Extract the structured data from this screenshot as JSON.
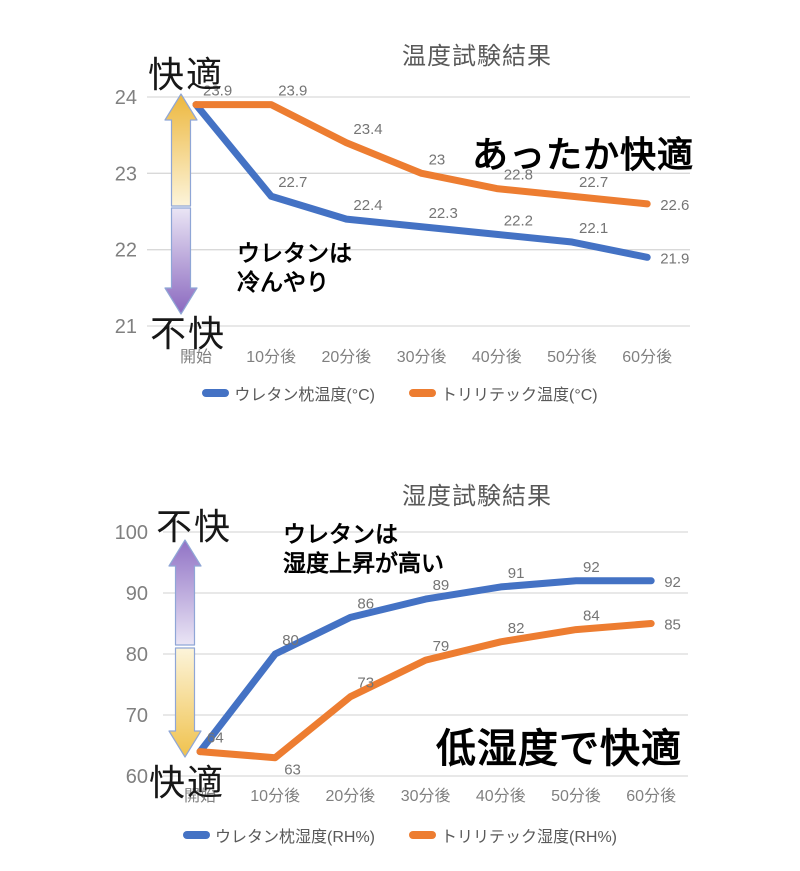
{
  "page": {
    "background": "#ffffff"
  },
  "chart_data": [
    {
      "id": "temperature-test",
      "type": "line",
      "title": "温度試験結果",
      "categories": [
        "開始",
        "10分後",
        "20分後",
        "30分後",
        "40分後",
        "50分後",
        "60分後"
      ],
      "series": [
        {
          "name": "ウレタン枕温度(°C)",
          "color": "#4472C4",
          "values": [
            23.9,
            22.7,
            22.4,
            22.3,
            22.2,
            22.1,
            21.9
          ],
          "point_labels": [
            "",
            "22.7",
            "22.4",
            "22.3",
            "22.2",
            "22.1",
            "21.9"
          ]
        },
        {
          "name": "トリリテック温度(°C)",
          "color": "#ED7D31",
          "values": [
            23.9,
            23.9,
            23.4,
            23,
            22.8,
            22.7,
            22.6
          ],
          "point_labels": [
            "23.9",
            "23.9",
            "23.4",
            "23",
            "22.8",
            "22.7",
            "22.6"
          ]
        }
      ],
      "ylim": [
        21,
        24
      ],
      "yticks": [
        24,
        23,
        22,
        21
      ],
      "grid": true,
      "legend_position": "bottom",
      "annotations": {
        "comfort_top": "快適",
        "comfort_bottom": "不快",
        "headline": "あったか快適",
        "note": "ウレタンは\n冷んやり"
      },
      "comfort_arrows": [
        {
          "position": "top",
          "direction": "up",
          "tip_color": "#EDB73D",
          "base_color": "#FCF4DA",
          "outline_color": "#8FA6D6"
        },
        {
          "position": "bottom",
          "direction": "down",
          "tip_color": "#8A68BF",
          "base_color": "#EAE5F5",
          "outline_color": "#8FA6D6"
        }
      ],
      "colors": {
        "grid": "#D9D9D9",
        "tick_text": "#808080",
        "title_text": "#595959",
        "data_label_text": "#757575"
      }
    },
    {
      "id": "humidity-test",
      "type": "line",
      "title": "湿度試験結果",
      "categories": [
        "開始",
        "10分後",
        "20分後",
        "30分後",
        "40分後",
        "50分後",
        "60分後"
      ],
      "series": [
        {
          "name": "ウレタン枕湿度(RH%)",
          "color": "#4472C4",
          "values": [
            64,
            80,
            86,
            89,
            91,
            92,
            92
          ],
          "point_labels": [
            "",
            "80",
            "86",
            "89",
            "91",
            "92",
            "92"
          ]
        },
        {
          "name": "トリリテック湿度(RH%)",
          "color": "#ED7D31",
          "values": [
            64,
            63,
            73,
            79,
            82,
            84,
            85
          ],
          "point_labels": [
            "64",
            "63",
            "73",
            "79",
            "82",
            "84",
            "85"
          ]
        }
      ],
      "ylim": [
        60,
        100
      ],
      "yticks": [
        100,
        90,
        80,
        70,
        60
      ],
      "grid": true,
      "legend_position": "bottom",
      "annotations": {
        "comfort_top": "不快",
        "comfort_bottom": "快適",
        "headline": "低湿度で快適",
        "note": "ウレタンは\n湿度上昇が高い"
      },
      "comfort_arrows": [
        {
          "position": "top",
          "direction": "up",
          "tip_color": "#9072C5",
          "base_color": "#EAE5F5",
          "outline_color": "#8FA6D6"
        },
        {
          "position": "bottom",
          "direction": "down",
          "tip_color": "#F0C24D",
          "base_color": "#FCF4DA",
          "outline_color": "#8FA6D6"
        }
      ],
      "colors": {
        "grid": "#D9D9D9",
        "tick_text": "#808080",
        "title_text": "#595959",
        "data_label_text": "#757575"
      }
    }
  ]
}
